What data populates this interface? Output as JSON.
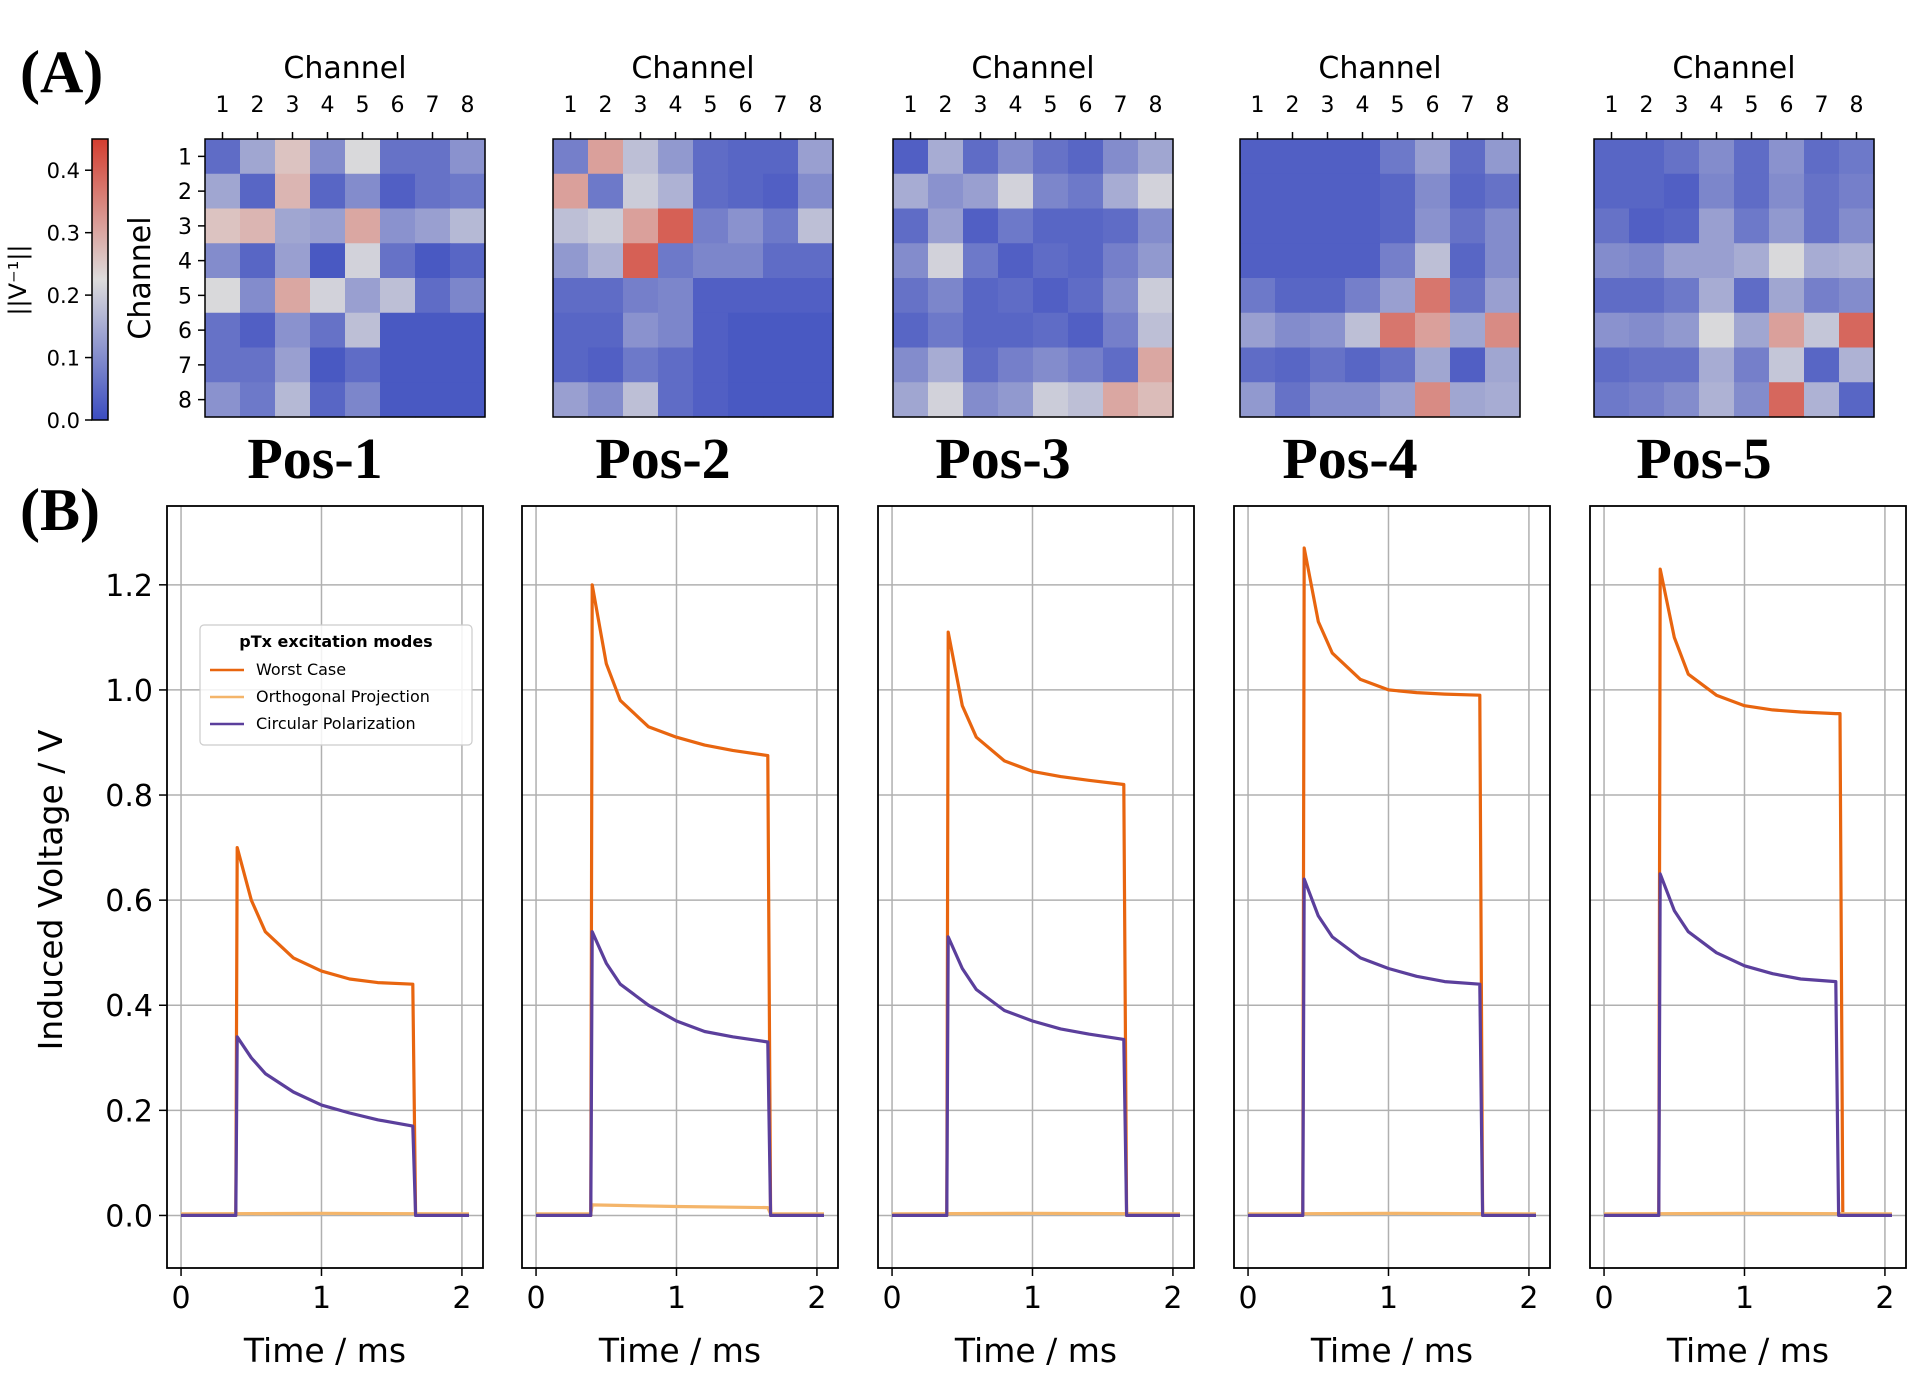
{
  "panel_labels": [
    "(A)",
    "(B)"
  ],
  "colorbar": {
    "label": "||V⁻¹||",
    "ticks": [
      "0.0",
      "0.1",
      "0.2",
      "0.3",
      "0.4"
    ],
    "range": [
      0.0,
      0.45
    ]
  },
  "heatmap_axis": {
    "label": "Channel",
    "ticks": [
      "1",
      "2",
      "3",
      "4",
      "5",
      "6",
      "7",
      "8"
    ]
  },
  "positions": [
    "Pos-1",
    "Pos-2",
    "Pos-3",
    "Pos-4",
    "Pos-5"
  ],
  "line_axes": {
    "ylabel": "Induced Voltage / V",
    "xlabel": "Time / ms",
    "xticks": [
      "0",
      "1",
      "2"
    ],
    "yticks": [
      "0.0",
      "0.2",
      "0.4",
      "0.6",
      "0.8",
      "1.0",
      "1.2"
    ]
  },
  "legend": {
    "title": "pTx excitation modes",
    "entries": [
      {
        "name": "Worst Case",
        "color": "#e8650f"
      },
      {
        "name": "Orthogonal Projection",
        "color": "#f4b56a"
      },
      {
        "name": "Circular Polarization",
        "color": "#5b3f9c"
      }
    ]
  },
  "colors": {
    "low": "#3b4cc0",
    "mid": "#dddcdc",
    "high": "#d43d2f"
  },
  "chart_data": [
    {
      "type": "heatmap",
      "title": "Pos-1",
      "xlabel": "Channel",
      "ylabel": "Channel",
      "categories": [
        "1",
        "2",
        "3",
        "4",
        "5",
        "6",
        "7",
        "8"
      ],
      "values": [
        [
          0.05,
          0.14,
          0.26,
          0.1,
          0.22,
          0.06,
          0.06,
          0.11
        ],
        [
          0.14,
          0.04,
          0.28,
          0.04,
          0.1,
          0.03,
          0.06,
          0.07
        ],
        [
          0.26,
          0.28,
          0.14,
          0.13,
          0.3,
          0.11,
          0.13,
          0.17
        ],
        [
          0.1,
          0.04,
          0.13,
          0.02,
          0.21,
          0.06,
          0.02,
          0.04
        ],
        [
          0.22,
          0.1,
          0.3,
          0.21,
          0.13,
          0.18,
          0.05,
          0.09
        ],
        [
          0.06,
          0.03,
          0.11,
          0.06,
          0.18,
          0.02,
          0.02,
          0.02
        ],
        [
          0.06,
          0.06,
          0.13,
          0.02,
          0.05,
          0.02,
          0.02,
          0.02
        ],
        [
          0.11,
          0.07,
          0.17,
          0.04,
          0.09,
          0.02,
          0.02,
          0.02
        ]
      ]
    },
    {
      "type": "heatmap",
      "title": "Pos-2",
      "xlabel": "",
      "ylabel": "",
      "categories": [
        "1",
        "2",
        "3",
        "4",
        "5",
        "6",
        "7",
        "8"
      ],
      "values": [
        [
          0.08,
          0.31,
          0.18,
          0.12,
          0.05,
          0.04,
          0.04,
          0.13
        ],
        [
          0.31,
          0.07,
          0.2,
          0.16,
          0.05,
          0.04,
          0.03,
          0.1
        ],
        [
          0.18,
          0.2,
          0.31,
          0.4,
          0.08,
          0.11,
          0.07,
          0.18
        ],
        [
          0.12,
          0.16,
          0.4,
          0.07,
          0.09,
          0.09,
          0.05,
          0.05
        ],
        [
          0.05,
          0.05,
          0.08,
          0.09,
          0.03,
          0.03,
          0.03,
          0.03
        ],
        [
          0.04,
          0.04,
          0.11,
          0.09,
          0.03,
          0.02,
          0.02,
          0.02
        ],
        [
          0.04,
          0.03,
          0.07,
          0.05,
          0.03,
          0.02,
          0.02,
          0.02
        ],
        [
          0.13,
          0.1,
          0.18,
          0.05,
          0.03,
          0.02,
          0.02,
          0.02
        ]
      ]
    },
    {
      "type": "heatmap",
      "title": "Pos-3",
      "xlabel": "",
      "ylabel": "",
      "categories": [
        "1",
        "2",
        "3",
        "4",
        "5",
        "6",
        "7",
        "8"
      ],
      "values": [
        [
          0.03,
          0.15,
          0.05,
          0.1,
          0.06,
          0.04,
          0.1,
          0.14
        ],
        [
          0.15,
          0.11,
          0.13,
          0.21,
          0.09,
          0.07,
          0.15,
          0.21
        ],
        [
          0.05,
          0.13,
          0.03,
          0.07,
          0.04,
          0.04,
          0.05,
          0.1
        ],
        [
          0.1,
          0.21,
          0.07,
          0.03,
          0.05,
          0.04,
          0.08,
          0.12
        ],
        [
          0.06,
          0.09,
          0.04,
          0.05,
          0.03,
          0.05,
          0.1,
          0.2
        ],
        [
          0.04,
          0.07,
          0.04,
          0.04,
          0.05,
          0.03,
          0.08,
          0.18
        ],
        [
          0.1,
          0.15,
          0.05,
          0.08,
          0.1,
          0.08,
          0.05,
          0.3
        ],
        [
          0.14,
          0.21,
          0.1,
          0.12,
          0.2,
          0.18,
          0.3,
          0.27
        ]
      ]
    },
    {
      "type": "heatmap",
      "title": "Pos-4",
      "xlabel": "",
      "ylabel": "",
      "categories": [
        "1",
        "2",
        "3",
        "4",
        "5",
        "6",
        "7",
        "8"
      ],
      "values": [
        [
          0.03,
          0.03,
          0.03,
          0.03,
          0.07,
          0.13,
          0.05,
          0.12
        ],
        [
          0.03,
          0.03,
          0.03,
          0.03,
          0.04,
          0.1,
          0.04,
          0.06
        ],
        [
          0.03,
          0.03,
          0.03,
          0.03,
          0.04,
          0.11,
          0.06,
          0.1
        ],
        [
          0.03,
          0.03,
          0.03,
          0.03,
          0.08,
          0.18,
          0.04,
          0.1
        ],
        [
          0.07,
          0.04,
          0.04,
          0.08,
          0.13,
          0.37,
          0.06,
          0.13
        ],
        [
          0.13,
          0.1,
          0.11,
          0.18,
          0.37,
          0.31,
          0.14,
          0.34
        ],
        [
          0.05,
          0.04,
          0.06,
          0.04,
          0.06,
          0.14,
          0.03,
          0.14
        ],
        [
          0.12,
          0.06,
          0.1,
          0.1,
          0.13,
          0.34,
          0.14,
          0.15
        ]
      ]
    },
    {
      "type": "heatmap",
      "title": "Pos-5",
      "xlabel": "",
      "ylabel": "",
      "categories": [
        "1",
        "2",
        "3",
        "4",
        "5",
        "6",
        "7",
        "8"
      ],
      "values": [
        [
          0.04,
          0.04,
          0.06,
          0.1,
          0.05,
          0.11,
          0.05,
          0.07
        ],
        [
          0.04,
          0.04,
          0.03,
          0.09,
          0.05,
          0.1,
          0.06,
          0.08
        ],
        [
          0.06,
          0.03,
          0.04,
          0.13,
          0.07,
          0.12,
          0.06,
          0.1
        ],
        [
          0.1,
          0.09,
          0.13,
          0.13,
          0.15,
          0.22,
          0.15,
          0.16
        ],
        [
          0.05,
          0.05,
          0.07,
          0.15,
          0.05,
          0.14,
          0.08,
          0.1
        ],
        [
          0.11,
          0.1,
          0.12,
          0.22,
          0.14,
          0.31,
          0.19,
          0.39
        ],
        [
          0.05,
          0.06,
          0.06,
          0.15,
          0.08,
          0.19,
          0.04,
          0.16
        ],
        [
          0.07,
          0.08,
          0.1,
          0.16,
          0.1,
          0.39,
          0.16,
          0.04
        ]
      ]
    },
    {
      "type": "line",
      "title": "Pos-1",
      "xlabel": "Time / ms",
      "ylabel": "Induced Voltage / V",
      "xlim": [
        -0.1,
        2.15
      ],
      "ylim": [
        -0.1,
        1.35
      ],
      "pulse_start_ms": 0.4,
      "pulse_end_ms": 1.65,
      "series": [
        {
          "name": "Worst Case",
          "x": [
            0.0,
            0.39,
            0.4,
            0.5,
            0.6,
            0.8,
            1.0,
            1.2,
            1.4,
            1.65,
            1.67,
            2.05
          ],
          "values": [
            0.0,
            0.0,
            0.7,
            0.6,
            0.54,
            0.49,
            0.465,
            0.45,
            0.443,
            0.44,
            0.0,
            0.0
          ]
        },
        {
          "name": "Orthogonal Projection",
          "x": [
            0.0,
            1.0,
            2.05
          ],
          "values": [
            0.003,
            0.004,
            0.003
          ]
        },
        {
          "name": "Circular Polarization",
          "x": [
            0.0,
            0.39,
            0.4,
            0.5,
            0.6,
            0.8,
            1.0,
            1.2,
            1.4,
            1.65,
            1.67,
            2.05
          ],
          "values": [
            0.0,
            0.0,
            0.34,
            0.3,
            0.27,
            0.235,
            0.21,
            0.195,
            0.182,
            0.17,
            0.0,
            0.0
          ]
        }
      ]
    },
    {
      "type": "line",
      "title": "Pos-2",
      "xlabel": "Time / ms",
      "ylabel": "",
      "xlim": [
        -0.1,
        2.15
      ],
      "ylim": [
        -0.1,
        1.35
      ],
      "pulse_start_ms": 0.4,
      "pulse_end_ms": 1.65,
      "series": [
        {
          "name": "Worst Case",
          "x": [
            0.0,
            0.39,
            0.4,
            0.5,
            0.6,
            0.8,
            1.0,
            1.2,
            1.4,
            1.65,
            1.67,
            2.05
          ],
          "values": [
            0.0,
            0.0,
            1.2,
            1.05,
            0.98,
            0.93,
            0.91,
            0.895,
            0.885,
            0.875,
            0.0,
            0.0
          ]
        },
        {
          "name": "Orthogonal Projection",
          "x": [
            0.0,
            0.39,
            0.4,
            1.0,
            1.65,
            1.67,
            2.05
          ],
          "values": [
            0.003,
            0.003,
            0.02,
            0.017,
            0.015,
            0.003,
            0.003
          ]
        },
        {
          "name": "Circular Polarization",
          "x": [
            0.0,
            0.39,
            0.4,
            0.5,
            0.6,
            0.8,
            1.0,
            1.2,
            1.4,
            1.65,
            1.67,
            2.05
          ],
          "values": [
            0.0,
            0.0,
            0.54,
            0.48,
            0.44,
            0.4,
            0.37,
            0.35,
            0.34,
            0.33,
            0.0,
            0.0
          ]
        }
      ]
    },
    {
      "type": "line",
      "title": "Pos-3",
      "xlabel": "Time / ms",
      "ylabel": "",
      "xlim": [
        -0.1,
        2.15
      ],
      "ylim": [
        -0.1,
        1.35
      ],
      "pulse_start_ms": 0.4,
      "pulse_end_ms": 1.65,
      "series": [
        {
          "name": "Worst Case",
          "x": [
            0.0,
            0.39,
            0.4,
            0.5,
            0.6,
            0.8,
            1.0,
            1.2,
            1.4,
            1.65,
            1.67,
            2.05
          ],
          "values": [
            0.0,
            0.0,
            1.11,
            0.97,
            0.91,
            0.865,
            0.845,
            0.835,
            0.828,
            0.82,
            0.0,
            0.0
          ]
        },
        {
          "name": "Orthogonal Projection",
          "x": [
            0.0,
            1.0,
            2.05
          ],
          "values": [
            0.003,
            0.004,
            0.003
          ]
        },
        {
          "name": "Circular Polarization",
          "x": [
            0.0,
            0.39,
            0.4,
            0.5,
            0.6,
            0.8,
            1.0,
            1.2,
            1.4,
            1.65,
            1.67,
            2.05
          ],
          "values": [
            0.0,
            0.0,
            0.53,
            0.47,
            0.43,
            0.39,
            0.37,
            0.355,
            0.345,
            0.335,
            0.0,
            0.0
          ]
        }
      ]
    },
    {
      "type": "line",
      "title": "Pos-4",
      "xlabel": "Time / ms",
      "ylabel": "",
      "xlim": [
        -0.1,
        2.15
      ],
      "ylim": [
        -0.1,
        1.35
      ],
      "pulse_start_ms": 0.4,
      "pulse_end_ms": 1.65,
      "series": [
        {
          "name": "Worst Case",
          "x": [
            0.0,
            0.39,
            0.4,
            0.5,
            0.6,
            0.8,
            1.0,
            1.2,
            1.4,
            1.65,
            1.67,
            2.05
          ],
          "values": [
            0.0,
            0.0,
            1.27,
            1.13,
            1.07,
            1.02,
            1.0,
            0.995,
            0.992,
            0.99,
            0.0,
            0.0
          ]
        },
        {
          "name": "Orthogonal Projection",
          "x": [
            0.0,
            1.0,
            2.05
          ],
          "values": [
            0.003,
            0.004,
            0.003
          ]
        },
        {
          "name": "Circular Polarization",
          "x": [
            0.0,
            0.39,
            0.4,
            0.5,
            0.6,
            0.8,
            1.0,
            1.2,
            1.4,
            1.65,
            1.67,
            2.05
          ],
          "values": [
            0.0,
            0.0,
            0.64,
            0.57,
            0.53,
            0.49,
            0.47,
            0.455,
            0.445,
            0.44,
            0.0,
            0.0
          ]
        }
      ]
    },
    {
      "type": "line",
      "title": "Pos-5",
      "xlabel": "Time / ms",
      "ylabel": "",
      "xlim": [
        -0.1,
        2.15
      ],
      "ylim": [
        -0.1,
        1.35
      ],
      "pulse_start_ms": 0.4,
      "pulse_end_ms": 1.68,
      "series": [
        {
          "name": "Worst Case",
          "x": [
            0.0,
            0.39,
            0.4,
            0.5,
            0.6,
            0.8,
            1.0,
            1.2,
            1.4,
            1.65,
            1.68,
            1.7,
            2.05
          ],
          "values": [
            0.0,
            0.0,
            1.23,
            1.1,
            1.03,
            0.99,
            0.97,
            0.962,
            0.958,
            0.955,
            0.955,
            0.0,
            0.0
          ]
        },
        {
          "name": "Orthogonal Projection",
          "x": [
            0.0,
            1.0,
            2.05
          ],
          "values": [
            0.003,
            0.004,
            0.003
          ]
        },
        {
          "name": "Circular Polarization",
          "x": [
            0.0,
            0.39,
            0.4,
            0.5,
            0.6,
            0.8,
            1.0,
            1.2,
            1.4,
            1.65,
            1.67,
            2.05
          ],
          "values": [
            0.0,
            0.0,
            0.65,
            0.58,
            0.54,
            0.5,
            0.475,
            0.46,
            0.45,
            0.445,
            0.0,
            0.0
          ]
        }
      ]
    }
  ]
}
